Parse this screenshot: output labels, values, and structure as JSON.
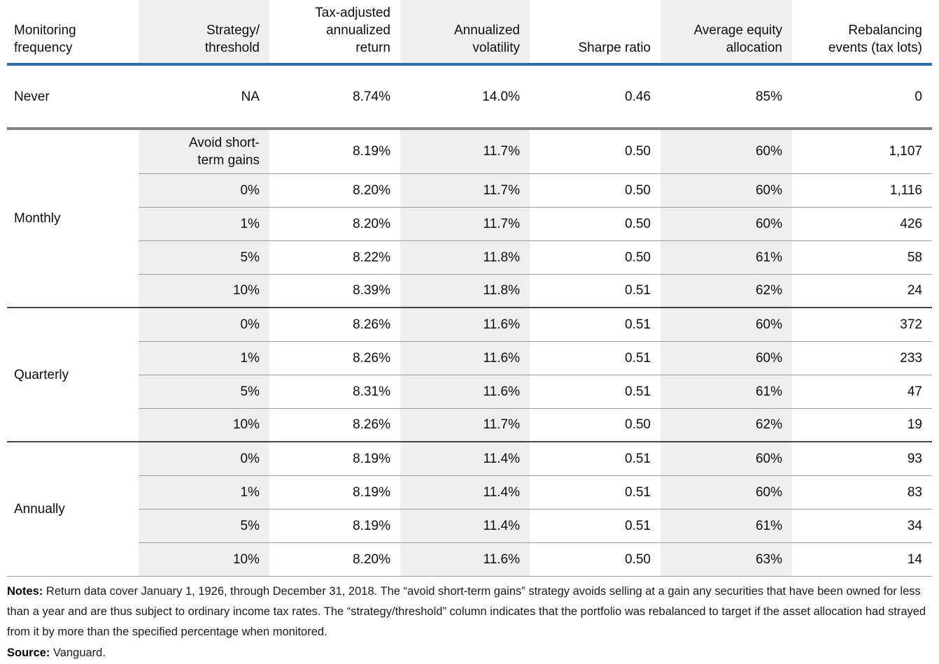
{
  "colors": {
    "header_rule_blue": "#2e6da4",
    "never_rule_gray": "#818181",
    "group_rule_dark": "#454545",
    "row_rule_gray": "#9c9c9c",
    "column_shade": "#efefef"
  },
  "table": {
    "headers": [
      "Monitoring\nfrequency",
      "Strategy/\nthreshold",
      "Tax-adjusted\nannualized\nreturn",
      "Annualized\nvolatility",
      "Sharpe ratio",
      "Average equity\nallocation",
      "Rebalancing\nevents (tax lots)"
    ],
    "never": {
      "frequency": "Never",
      "strategy": "NA",
      "ret": "8.74%",
      "vol": "14.0%",
      "sharpe": "0.46",
      "equity": "85%",
      "events": "0"
    },
    "groups": [
      {
        "frequency": "Monthly",
        "rows": [
          {
            "strategy": "Avoid short-\nterm gains",
            "ret": "8.19%",
            "vol": "11.7%",
            "sharpe": "0.50",
            "equity": "60%",
            "events": "1,107"
          },
          {
            "strategy": "0%",
            "ret": "8.20%",
            "vol": "11.7%",
            "sharpe": "0.50",
            "equity": "60%",
            "events": "1,116"
          },
          {
            "strategy": "1%",
            "ret": "8.20%",
            "vol": "11.7%",
            "sharpe": "0.50",
            "equity": "60%",
            "events": "426"
          },
          {
            "strategy": "5%",
            "ret": "8.22%",
            "vol": "11.8%",
            "sharpe": "0.50",
            "equity": "61%",
            "events": "58"
          },
          {
            "strategy": "10%",
            "ret": "8.39%",
            "vol": "11.8%",
            "sharpe": "0.51",
            "equity": "62%",
            "events": "24"
          }
        ]
      },
      {
        "frequency": "Quarterly",
        "rows": [
          {
            "strategy": "0%",
            "ret": "8.26%",
            "vol": "11.6%",
            "sharpe": "0.51",
            "equity": "60%",
            "events": "372"
          },
          {
            "strategy": "1%",
            "ret": "8.26%",
            "vol": "11.6%",
            "sharpe": "0.51",
            "equity": "60%",
            "events": "233"
          },
          {
            "strategy": "5%",
            "ret": "8.31%",
            "vol": "11.6%",
            "sharpe": "0.51",
            "equity": "61%",
            "events": "47"
          },
          {
            "strategy": "10%",
            "ret": "8.26%",
            "vol": "11.7%",
            "sharpe": "0.50",
            "equity": "62%",
            "events": "19"
          }
        ]
      },
      {
        "frequency": "Annually",
        "rows": [
          {
            "strategy": "0%",
            "ret": "8.19%",
            "vol": "11.4%",
            "sharpe": "0.51",
            "equity": "60%",
            "events": "93"
          },
          {
            "strategy": "1%",
            "ret": "8.19%",
            "vol": "11.4%",
            "sharpe": "0.51",
            "equity": "60%",
            "events": "83"
          },
          {
            "strategy": "5%",
            "ret": "8.19%",
            "vol": "11.4%",
            "sharpe": "0.51",
            "equity": "61%",
            "events": "34"
          },
          {
            "strategy": "10%",
            "ret": "8.20%",
            "vol": "11.6%",
            "sharpe": "0.50",
            "equity": "63%",
            "events": "14"
          }
        ]
      }
    ]
  },
  "notes": {
    "label": "Notes:",
    "text": " Return data cover January 1, 1926, through December 31, 2018. The “avoid short-term gains” strategy avoids selling at a gain any securities that have been owned for less than a year and are thus subject to ordinary income tax rates. The “strategy/threshold” column indicates that the portfolio was rebalanced to target if the asset allocation had strayed from it by more than the specified percentage when monitored.",
    "source_label": "Source:",
    "source_text": " Vanguard."
  }
}
